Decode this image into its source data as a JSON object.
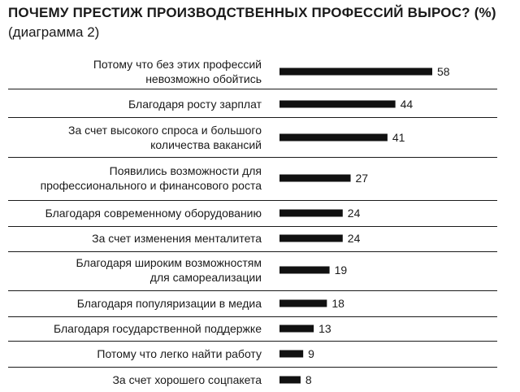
{
  "chart_data": {
    "type": "bar",
    "orientation": "horizontal",
    "title": "ПОЧЕМУ ПРЕСТИЖ ПРОИЗВОДСТВЕННЫХ ПРОФЕССИЙ ВЫРОС? (%)",
    "subtitle": "(диаграмма 2)",
    "categories": [
      [
        "Потому что без этих профессий",
        "невозможно обойтись"
      ],
      [
        "Благодаря росту зарплат"
      ],
      [
        "За счет высокого спроса и большого",
        "количества вакансий"
      ],
      [
        "Появились возможности для",
        "профессионального и финансового роста"
      ],
      [
        "Благодаря современному оборудованию"
      ],
      [
        "За счет изменения менталитета"
      ],
      [
        "Благодаря широким возможностям",
        "для самореализации"
      ],
      [
        "Благодаря популяризации в медиа"
      ],
      [
        "Благодаря государственной поддержке"
      ],
      [
        "Потому что легко найти работу"
      ],
      [
        "За счет хорошего соцпакета"
      ]
    ],
    "values": [
      58,
      44,
      41,
      27,
      24,
      24,
      19,
      18,
      13,
      9,
      8
    ],
    "xlim": [
      0,
      58
    ],
    "bar_color": "#111111",
    "grid": false
  }
}
